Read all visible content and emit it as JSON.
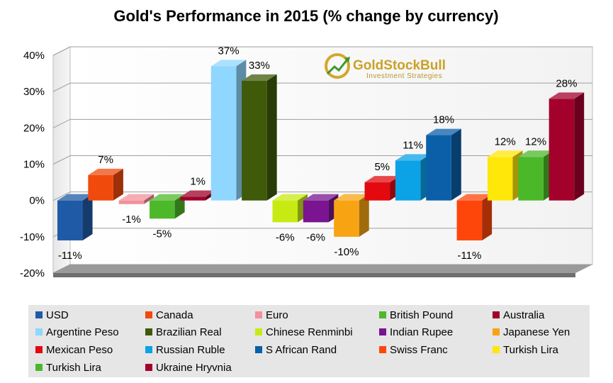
{
  "chart_data": {
    "type": "bar",
    "title": "Gold's Performance in 2015 (% change by currency)",
    "ylim": [
      -20,
      40
    ],
    "yticks": [
      "-20%",
      "-10%",
      "0%",
      "10%",
      "20%",
      "30%",
      "40%"
    ],
    "ytick_values": [
      -20,
      -10,
      0,
      10,
      20,
      30,
      40
    ],
    "grid": true,
    "legend_position": "bottom",
    "categories": [
      "USD",
      "Canada",
      "Euro",
      "British Pound",
      "Australia",
      "Argentine Peso",
      "Brazilian Real",
      "Chinese Renminbi",
      "Indian Rupee",
      "Japanese Yen",
      "Mexican Peso",
      "Russian Ruble",
      "S African Rand",
      "Swiss Franc",
      "Turkish Lira",
      "Turkish Lira",
      "Ukraine Hryvnia"
    ],
    "values": [
      -11,
      7,
      -1,
      -5,
      1,
      37,
      33,
      -6,
      -6,
      -10,
      5,
      11,
      18,
      -11,
      12,
      12,
      28
    ],
    "data_labels": [
      "-11%",
      "7%",
      "-1%",
      "-5%",
      "1%",
      "37%",
      "33%",
      "-6%",
      "-6%",
      "-10%",
      "5%",
      "11%",
      "18%",
      "-11%",
      "12%",
      "12%",
      "28%"
    ],
    "colors": [
      "#1f5aa6",
      "#f04a0c",
      "#f4909a",
      "#4db82a",
      "#a0002a",
      "#8fd7ff",
      "#3f5a09",
      "#c8ea13",
      "#7a1490",
      "#f8a412",
      "#e3090f",
      "#0ca2e6",
      "#0b5fa8",
      "#ff460a",
      "#ffe70a",
      "#4bb82a",
      "#a3002c"
    ]
  },
  "logo": {
    "name": "GoldStockBull",
    "tagline": "Investment Strategies"
  }
}
